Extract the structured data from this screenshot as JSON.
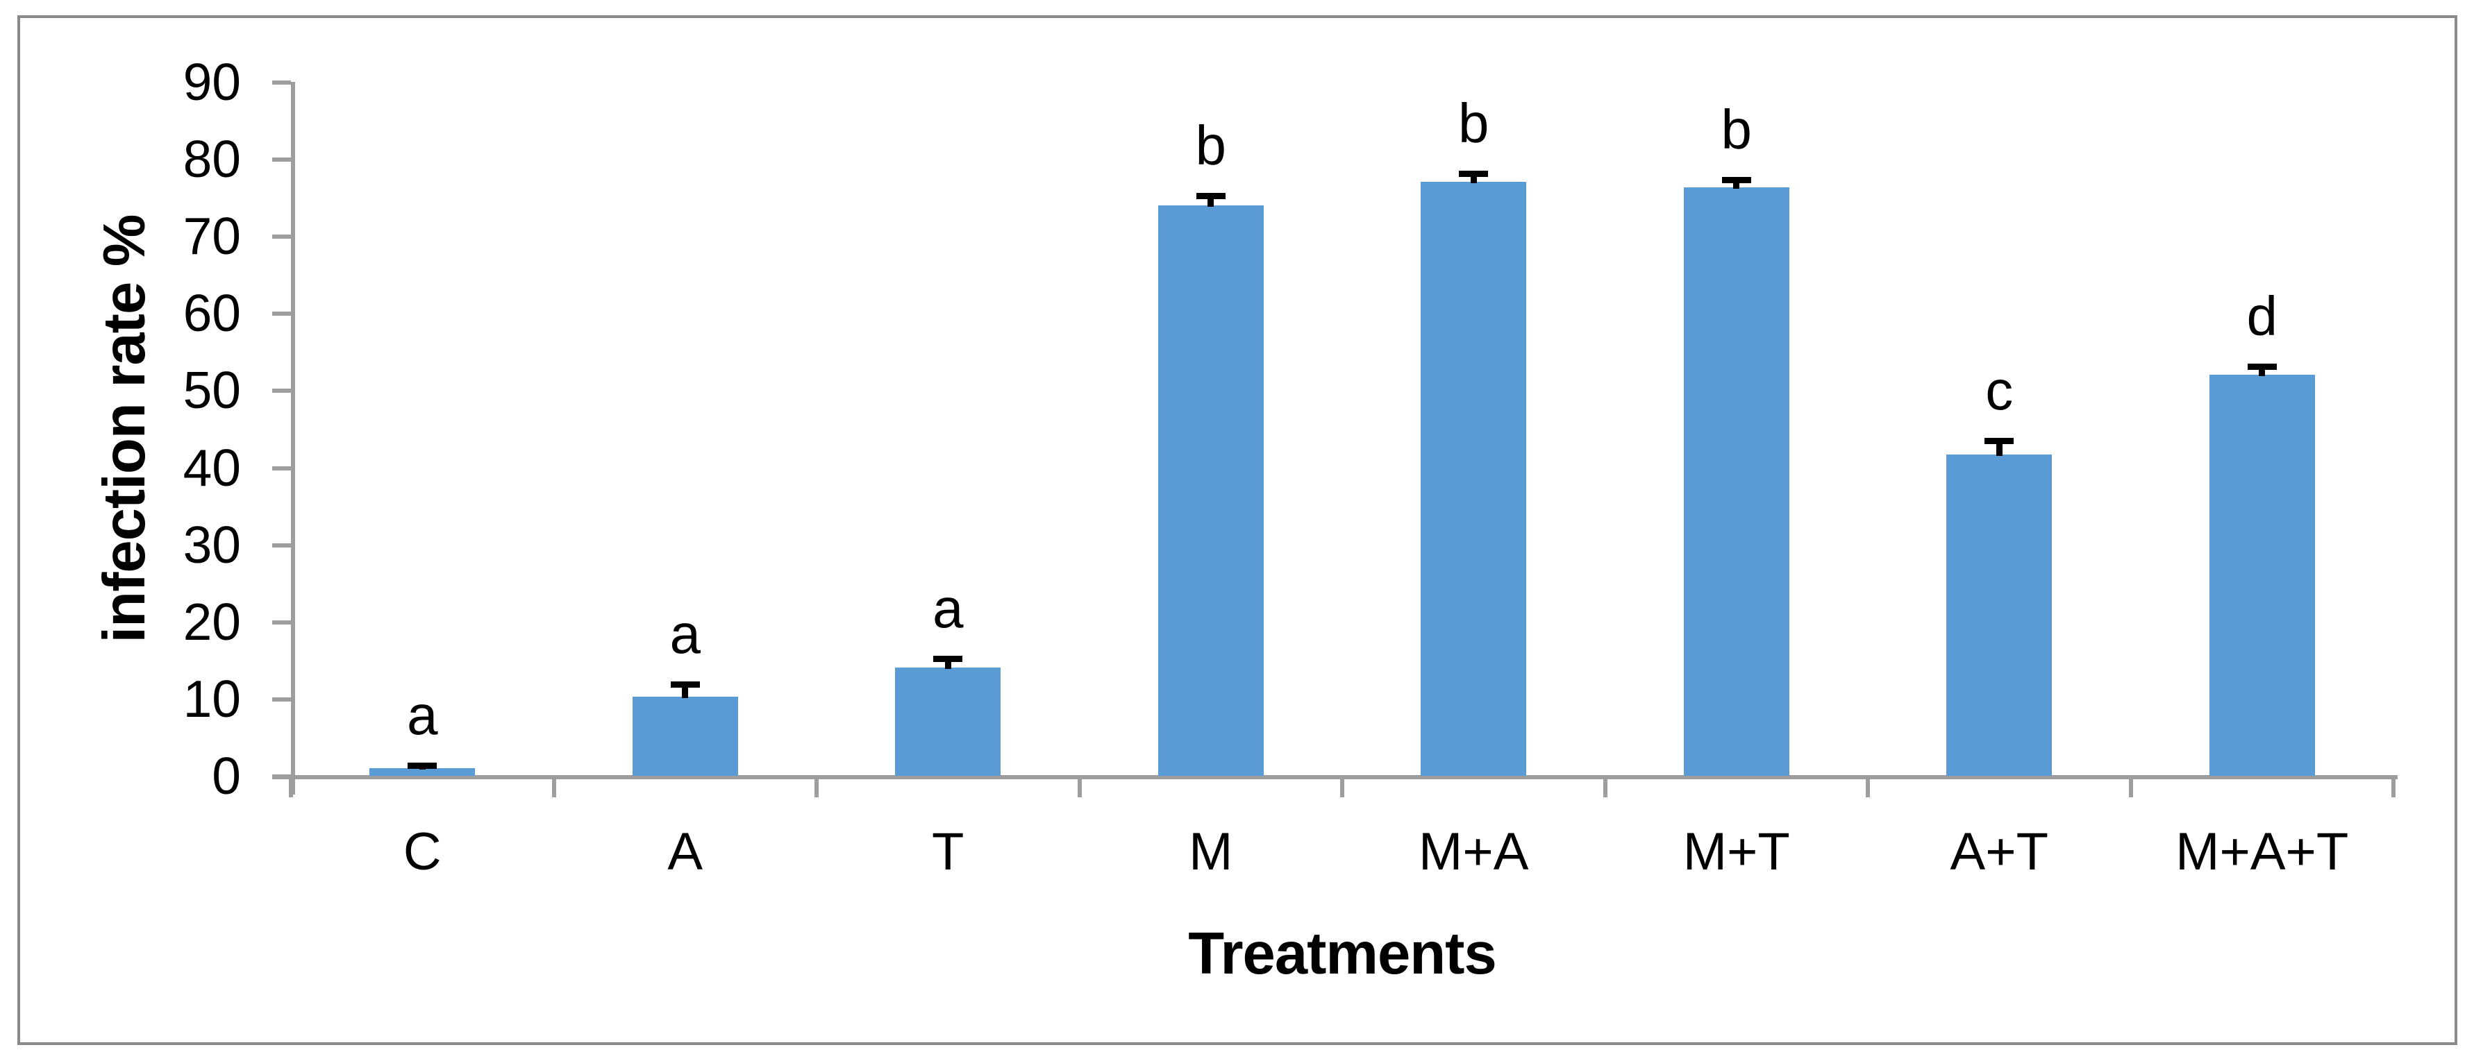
{
  "chart_data": {
    "type": "bar",
    "title": "",
    "xlabel": "Treatments",
    "ylabel": "infection rate %",
    "categories": [
      "C",
      "A",
      "T",
      "M",
      "M+A",
      "M+T",
      "A+T",
      "M+A+T"
    ],
    "values": [
      1.0,
      10.3,
      14.0,
      74.0,
      77.0,
      76.3,
      41.7,
      52.0
    ],
    "error_bars_plus": [
      0.3,
      1.5,
      1.2,
      1.2,
      1.1,
      1.0,
      1.7,
      1.1
    ],
    "significance_letters": [
      "a",
      "a",
      "a",
      "b",
      "b",
      "b",
      "c",
      "d"
    ],
    "yticks": [
      0,
      10,
      20,
      30,
      40,
      50,
      60,
      70,
      80,
      90
    ],
    "ylim": [
      0,
      90
    ],
    "grid": false,
    "legend": "none",
    "bar_color": "#5B9BD5",
    "axis_color": "#9D9D9D",
    "frame_color": "#8A8A8A",
    "error_bar_color": "#000000",
    "text_color": "#000000"
  }
}
